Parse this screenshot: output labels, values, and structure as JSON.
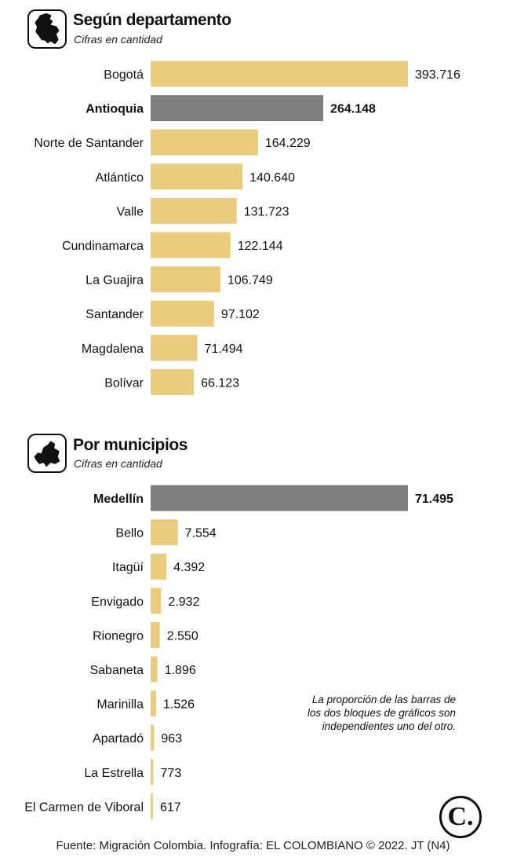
{
  "colors": {
    "bar": "#e9cc7e",
    "highlight": "#7e7e7e"
  },
  "icons": {
    "top": "colombia-map-icon",
    "bottom": "antioquia-map-icon",
    "logo": "el-colombiano-logo-icon"
  },
  "chart_data": [
    {
      "type": "bar",
      "orientation": "horizontal",
      "title": "Según departamento",
      "subtitle": "Cifras en cantidad",
      "categories": [
        "Bogotá",
        "Antioquia",
        "Norte de Santander",
        "Atlántico",
        "Valle",
        "Cundinamarca",
        "La Guajira",
        "Santander",
        "Magdalena",
        "Bolívar"
      ],
      "values": [
        393716,
        264148,
        164229,
        140640,
        131723,
        122144,
        106749,
        97102,
        71494,
        66123
      ],
      "value_labels": [
        "393.716",
        "264.148",
        "164.229",
        "140.640",
        "131.723",
        "122.144",
        "106.749",
        "97.102",
        "71.494",
        "66.123"
      ],
      "highlight": "Antioquia"
    },
    {
      "type": "bar",
      "orientation": "horizontal",
      "title": "Por municipios",
      "subtitle": "Cifras en cantidad",
      "categories": [
        "Medellín",
        "Bello",
        "Itagüí",
        "Envigado",
        "Rionegro",
        "Sabaneta",
        "Marinilla",
        "Apartadó",
        "La Estrella",
        "El Carmen de Viboral"
      ],
      "values": [
        71495,
        7554,
        4392,
        2932,
        2550,
        1896,
        1526,
        963,
        773,
        617
      ],
      "value_labels": [
        "71.495",
        "7.554",
        "4.392",
        "2.932",
        "2.550",
        "1.896",
        "1.526",
        "963",
        "773",
        "617"
      ],
      "highlight": "Medellín"
    }
  ],
  "note": "La proporción de las barras de los dos bloques de gráficos son independientes uno del otro.",
  "logo_text": "C.",
  "source": "Fuente: Migración Colombia. Infografía: EL COLOMBIANO © 2022. JT (N4)"
}
